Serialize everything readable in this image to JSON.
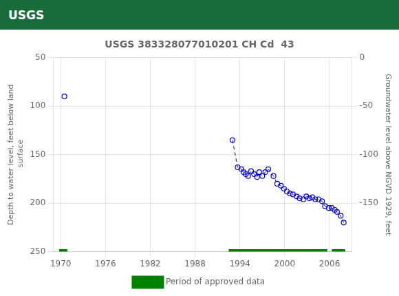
{
  "chart_data": {
    "type": "line",
    "header": {
      "text": "USGS",
      "color": "#1a6b3c"
    },
    "title": "USGS 383328077010201 CH Cd  43",
    "ylabel": "Depth to water level, feet below land\n surface",
    "y2label": "Groundwater level above NGVD 1929, feet",
    "xlim": [
      1969,
      2009
    ],
    "xticks": [
      1970,
      1976,
      1982,
      1988,
      1994,
      2000,
      2006
    ],
    "ylim": [
      250,
      50
    ],
    "yticks": [
      250,
      200,
      150,
      100,
      50
    ],
    "y2lim": [
      -200,
      0
    ],
    "y2ticks": [
      -150,
      -100,
      -50,
      0
    ],
    "grid": true,
    "legend": "bottom",
    "series": [
      {
        "x": [
          1970.5
        ],
        "values": [
          90
        ],
        "color": "#0000cc",
        "marker": "circle",
        "line_style": "none"
      },
      {
        "x": [
          1993.0,
          1993.7,
          1994.2,
          1994.5,
          1994.8,
          1995.1,
          1995.5,
          1995.9,
          1996.3,
          1996.6,
          1997.0,
          1997.4,
          1997.8,
          1998.5,
          1999.0,
          1999.5,
          1999.9,
          2000.3,
          2000.7,
          2001.1,
          2001.6,
          2002.0,
          2002.5,
          2002.9,
          2003.3,
          2003.7,
          2004.1,
          2004.5,
          2005.0,
          2005.4,
          2005.9,
          2006.3,
          2006.7,
          2007.0,
          2007.5,
          2007.9
        ],
        "values": [
          135,
          163,
          165,
          168,
          170,
          172,
          167,
          170,
          173,
          168,
          172,
          168,
          165,
          172,
          180,
          182,
          185,
          188,
          190,
          191,
          193,
          195,
          196,
          193,
          195,
          194,
          196,
          196,
          198,
          203,
          205,
          205,
          207,
          209,
          213,
          220
        ],
        "color": "#0000cc",
        "marker": "circle",
        "line_style": "dashed"
      },
      {
        "name": "Period of approved data",
        "type": "bar",
        "color": "#008000",
        "periods": [
          [
            1969.8,
            1970.9
          ],
          [
            1992.5,
            2005.7
          ],
          [
            2006.3,
            2008.1
          ]
        ]
      }
    ]
  }
}
